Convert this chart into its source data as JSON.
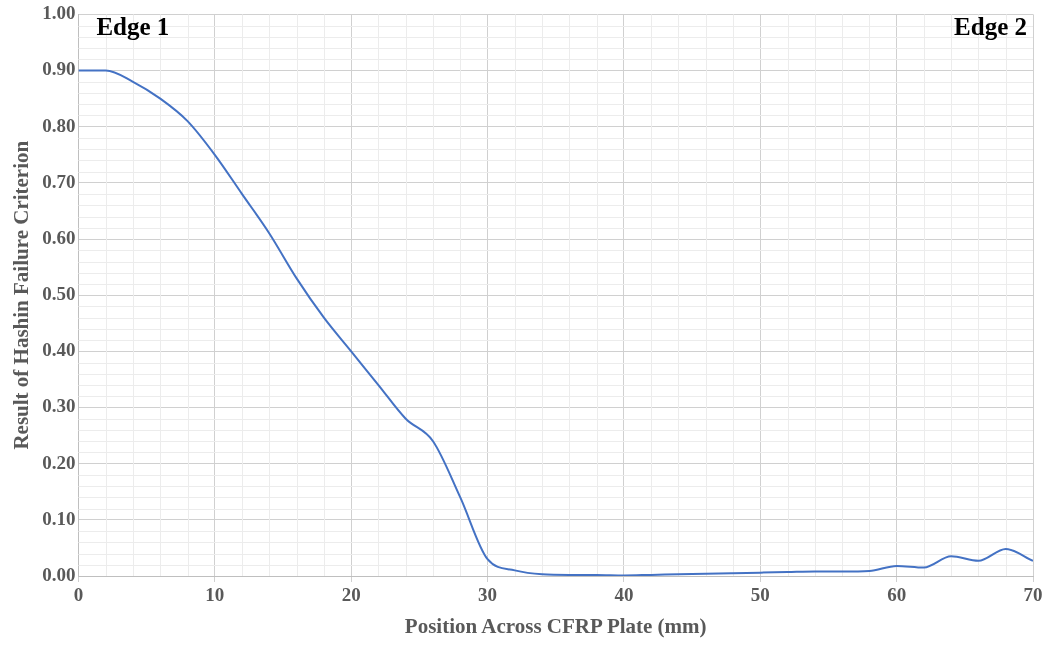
{
  "chart_data": {
    "type": "line",
    "xlabel": "Position Across CFRP Plate (mm)",
    "ylabel": "Result of Hashin Failure Criterion",
    "x": [
      0,
      2,
      4,
      6,
      8,
      10,
      12,
      14,
      16,
      18,
      20,
      22,
      24,
      26,
      28,
      30,
      32,
      34,
      36,
      38,
      40,
      42,
      44,
      46,
      48,
      50,
      52,
      54,
      56,
      58,
      60,
      62,
      64,
      66,
      68,
      70
    ],
    "series": [
      {
        "color": "#4472c4",
        "values": [
          0.9,
          0.9,
          0.88,
          0.85,
          0.81,
          0.75,
          0.68,
          0.61,
          0.53,
          0.46,
          0.4,
          0.34,
          0.28,
          0.24,
          0.14,
          0.03,
          0.01,
          0.003,
          0.002,
          0.002,
          0.001,
          0.002,
          0.003,
          0.004,
          0.005,
          0.006,
          0.007,
          0.008,
          0.008,
          0.009,
          0.018,
          0.015,
          0.035,
          0.027,
          0.048,
          0.027
        ]
      }
    ],
    "xlim": [
      0,
      70
    ],
    "xticks": [
      0,
      10,
      20,
      30,
      40,
      50,
      60,
      70
    ],
    "ylim": [
      0,
      1
    ],
    "yticks": [
      {
        "value": 0,
        "label": "0.00"
      },
      {
        "value": 0.1,
        "label": "0.10"
      },
      {
        "value": 0.2,
        "label": "0.20"
      },
      {
        "value": 0.3,
        "label": "0.30"
      },
      {
        "value": 0.4,
        "label": "0.40"
      },
      {
        "value": 0.5,
        "label": "0.50"
      },
      {
        "value": 0.6,
        "label": "0.60"
      },
      {
        "value": 0.7,
        "label": "0.70"
      },
      {
        "value": 0.8,
        "label": "0.80"
      },
      {
        "value": 0.9,
        "label": "0.90"
      },
      {
        "value": 1,
        "label": "1.00"
      }
    ],
    "annotations": [
      "Edge 1",
      "Edge 2"
    ],
    "grid": true,
    "legend": false,
    "marker": "none",
    "line_style": "solid"
  }
}
